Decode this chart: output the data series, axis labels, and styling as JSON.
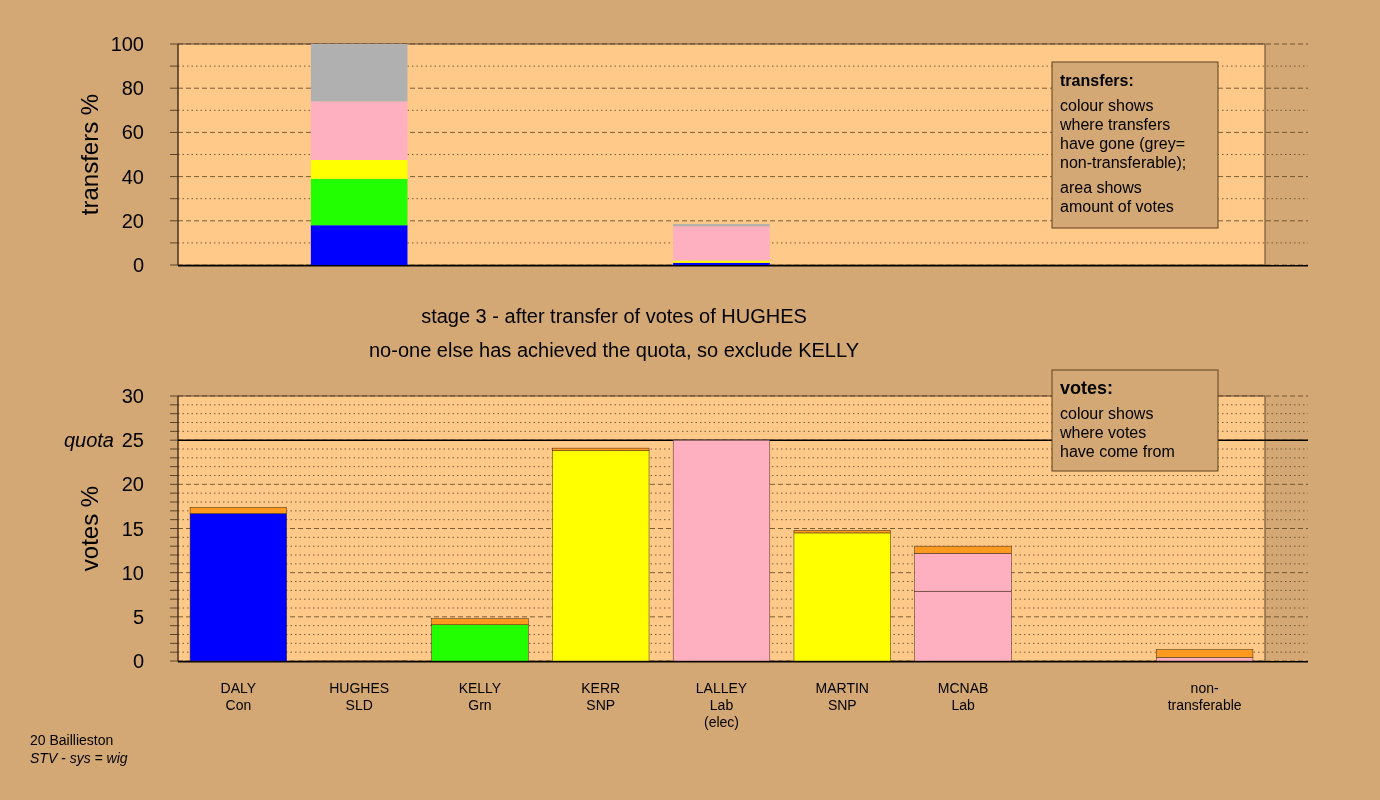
{
  "chart_data": [
    {
      "type": "bar",
      "stacked": true,
      "ylabel": "transfers %",
      "categories": [
        null,
        null,
        null,
        null,
        null,
        null,
        null,
        null,
        null
      ],
      "series": [
        {
          "color": "#0000ff",
          "values": [
            null,
            18,
            null,
            null,
            1,
            null,
            null,
            null,
            null
          ]
        },
        {
          "color": "#22ff00",
          "values": [
            null,
            21,
            null,
            null,
            null,
            null,
            null,
            null,
            null
          ]
        },
        {
          "color": "#ffff00",
          "values": [
            null,
            8.5,
            null,
            null,
            1,
            null,
            null,
            null,
            null
          ]
        },
        {
          "color": "#ffb0c0",
          "values": [
            null,
            26.5,
            null,
            null,
            15.5,
            null,
            null,
            null,
            null
          ]
        },
        {
          "color": "#b0b0b0",
          "values": [
            null,
            26,
            null,
            null,
            1,
            null,
            null,
            null,
            null
          ]
        }
      ],
      "ylim": [
        0,
        100
      ],
      "yticks": [
        0,
        {
          "value": 10,
          "label": null
        },
        20,
        {
          "value": 30,
          "label": null
        },
        40,
        {
          "value": 50,
          "label": null
        },
        60,
        {
          "value": 70,
          "label": null
        },
        80,
        {
          "value": 90,
          "label": null
        },
        100
      ],
      "grid": "y",
      "tick_labels": "y",
      "annotations": [
        "transfers:",
        "colour shows\nwhere transfers\nhave gone (grey=\nnon-transferable);",
        "area shows\namount of votes"
      ]
    },
    {
      "type": "bar",
      "stacked": true,
      "title": "stage 3 - after transfer of votes of HUGHES",
      "subtitle": "no-one else has achieved the quota, so exclude KELLY",
      "ylabel": "votes %",
      "categories": [
        "DALY\nCon",
        "HUGHES\nSLD",
        "KELLY\nGrn",
        "KERR\nSNP",
        "LALLEY\nLab\n(elec)",
        "MARTIN\nSNP",
        "MCNAB\nLab",
        null,
        "non-\ntransferable"
      ],
      "series": [
        {
          "color": "#0000ff",
          "values": [
            16.7,
            0,
            null,
            null,
            null,
            null,
            null,
            null,
            null
          ]
        },
        {
          "color": "#22ff00",
          "values": [
            null,
            null,
            4.1,
            null,
            null,
            null,
            null,
            null,
            null
          ]
        },
        {
          "color": "#ffff00",
          "values": [
            null,
            null,
            null,
            23.8,
            null,
            14.5,
            null,
            null,
            null
          ]
        },
        {
          "color": "#ffb0c0",
          "values": [
            null,
            null,
            null,
            null,
            25,
            null,
            7.9,
            null,
            0.4
          ]
        },
        {
          "color": "#ffb0c0",
          "values": [
            null,
            null,
            null,
            null,
            null,
            null,
            4.3,
            null,
            null
          ]
        },
        {
          "color": "#ff9a20",
          "values": [
            0.7,
            null,
            0.7,
            0.3,
            null,
            0.3,
            0.8,
            null,
            0.9
          ]
        }
      ],
      "ylim": [
        0,
        30
      ],
      "yticks": [
        0,
        {
          "value": 1,
          "label": null
        },
        {
          "value": 2,
          "label": null
        },
        {
          "value": 3,
          "label": null
        },
        {
          "value": 4,
          "label": null
        },
        5,
        {
          "value": 6,
          "label": null
        },
        {
          "value": 7,
          "label": null
        },
        {
          "value": 8,
          "label": null
        },
        {
          "value": 9,
          "label": null
        },
        10,
        {
          "value": 11,
          "label": null
        },
        {
          "value": 12,
          "label": null
        },
        {
          "value": 13,
          "label": null
        },
        {
          "value": 14,
          "label": null
        },
        15,
        {
          "value": 16,
          "label": null
        },
        {
          "value": 17,
          "label": null
        },
        {
          "value": 18,
          "label": null
        },
        {
          "value": 19,
          "label": null
        },
        20,
        {
          "value": 21,
          "label": null
        },
        {
          "value": 22,
          "label": null
        },
        {
          "value": 23,
          "label": null
        },
        {
          "value": 24,
          "label": null
        },
        25,
        {
          "value": 26,
          "label": null
        },
        {
          "value": 27,
          "label": null
        },
        {
          "value": 28,
          "label": null
        },
        {
          "value": 29,
          "label": null
        },
        30
      ],
      "grid": "y",
      "ref_lines": [
        {
          "axis": "y",
          "value": 25,
          "label": "quota"
        }
      ],
      "annotations": [
        "votes:",
        "colour shows\nwhere votes\nhave come from",
        "20 Baillieston",
        "STV - sys = wig"
      ]
    }
  ]
}
